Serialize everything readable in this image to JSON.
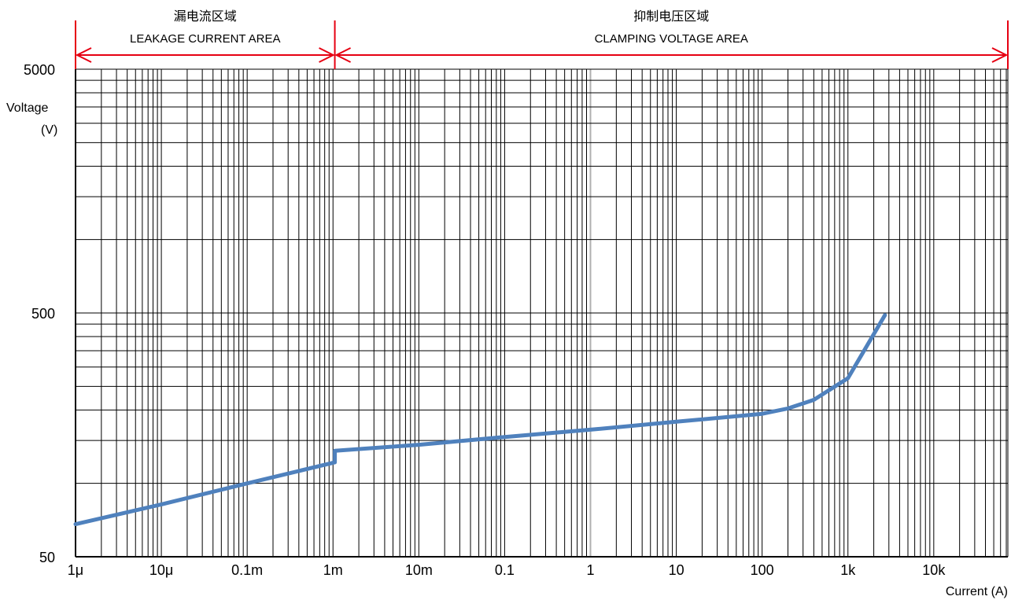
{
  "chart_data": {
    "type": "line",
    "x_scale": "log",
    "y_scale": "log",
    "xlim": [
      1e-06,
      73000
    ],
    "ylim": [
      50,
      5000
    ],
    "grid": true,
    "xlabel": "Current (A)",
    "ylabel_line1": "Voltage",
    "ylabel_line2": "(V)",
    "x_ticks": [
      {
        "value": 1e-06,
        "label": "1μ"
      },
      {
        "value": 1e-05,
        "label": "10μ"
      },
      {
        "value": 0.0001,
        "label": "0.1m"
      },
      {
        "value": 0.001,
        "label": "1m"
      },
      {
        "value": 0.01,
        "label": "10m"
      },
      {
        "value": 0.1,
        "label": "0.1"
      },
      {
        "value": 1,
        "label": "1"
      },
      {
        "value": 10,
        "label": "10"
      },
      {
        "value": 100,
        "label": "100"
      },
      {
        "value": 1000,
        "label": "1k"
      },
      {
        "value": 10000,
        "label": "10k"
      }
    ],
    "y_ticks": [
      {
        "value": 50,
        "label": "50"
      },
      {
        "value": 500,
        "label": "500"
      },
      {
        "value": 5000,
        "label": "5000"
      }
    ],
    "regions": [
      {
        "label_cn": "漏电流区域",
        "label_en": "LEAKAGE CURRENT AREA",
        "x_range": [
          1e-06,
          0.00105
        ]
      },
      {
        "label_cn": "抑制电压区域",
        "label_en": "CLAMPING VOLTAGE AREA",
        "x_range": [
          0.00105,
          73000
        ]
      }
    ],
    "series": [
      {
        "color": "#4f81bd",
        "x": [
          1e-06,
          1e-05,
          0.0001,
          0.00105,
          0.00105,
          0.01,
          0.1,
          1,
          10,
          100,
          200,
          400,
          1000,
          2700
        ],
        "y": [
          68,
          82,
          100,
          122,
          136,
          144,
          155,
          166,
          179,
          193,
          203,
          220,
          270,
          490
        ]
      }
    ]
  },
  "colors": {
    "arrow": "#e60012",
    "grid": "#000000",
    "highlight_grid": "#b0b0b0"
  }
}
